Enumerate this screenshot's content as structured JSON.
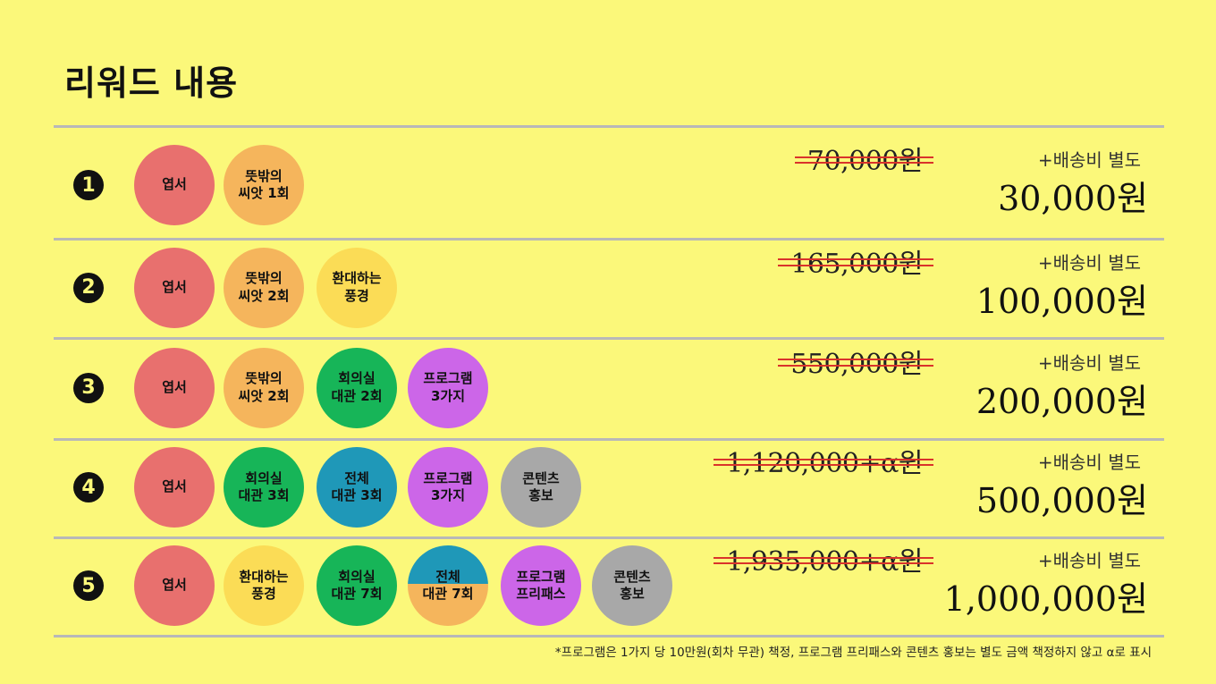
{
  "title": "리워드 내용",
  "colors": {
    "background": "#fbf87a",
    "postcard": "#e8706e",
    "seed": "#f5b55c",
    "landscape": "#fbdc56",
    "meeting": "#17b558",
    "whole": "#1f98b8",
    "program": "#cc66e8",
    "contents": "#a8a8a8",
    "strike": "#d9332b"
  },
  "shipping_label": "+배송비 별도",
  "tiers": [
    {
      "number": "1",
      "items": [
        {
          "label": "엽서",
          "color": "#e8706e"
        },
        {
          "label": "뜻밖의\n씨앗 1회",
          "color": "#f5b55c"
        }
      ],
      "original_price": "70,000원",
      "price": "30,000원"
    },
    {
      "number": "2",
      "items": [
        {
          "label": "엽서",
          "color": "#e8706e"
        },
        {
          "label": "뜻밖의\n씨앗 2회",
          "color": "#f5b55c"
        },
        {
          "label": "환대하는\n풍경",
          "color": "#fbdc56"
        }
      ],
      "original_price": "165,000원",
      "price": "100,000원"
    },
    {
      "number": "3",
      "items": [
        {
          "label": "엽서",
          "color": "#e8706e"
        },
        {
          "label": "뜻밖의\n씨앗 2회",
          "color": "#f5b55c"
        },
        {
          "label": "회의실\n대관 2회",
          "color": "#17b558"
        },
        {
          "label": "프로그램\n3가지",
          "color": "#cc66e8"
        }
      ],
      "original_price": "550,000원",
      "price": "200,000원"
    },
    {
      "number": "4",
      "items": [
        {
          "label": "엽서",
          "color": "#e8706e"
        },
        {
          "label": "회의실\n대관 3회",
          "color": "#17b558"
        },
        {
          "label": "전체\n대관 3회",
          "color": "#1f98b8"
        },
        {
          "label": "프로그램\n3가지",
          "color": "#cc66e8"
        },
        {
          "label": "콘텐츠\n홍보",
          "color": "#a8a8a8"
        }
      ],
      "original_price": "1,120,000+α원",
      "price": "500,000원"
    },
    {
      "number": "5",
      "items": [
        {
          "label": "엽서",
          "color": "#e8706e"
        },
        {
          "label": "환대하는\n풍경",
          "color": "#fbdc56"
        },
        {
          "label": "회의실\n대관 7회",
          "color": "#17b558"
        },
        {
          "label": "전체\n대관 7회",
          "color": "split"
        },
        {
          "label": "프로그램\n프리패스",
          "color": "#cc66e8"
        },
        {
          "label": "콘텐츠\n홍보",
          "color": "#a8a8a8"
        }
      ],
      "original_price": "1,935,000+α원",
      "price": "1,000,000원"
    }
  ],
  "footnote": "*프로그램은 1가지 당 10만원(회차 무관) 책정, 프로그램 프리패스와 콘텐츠 홍보는 별도 금액 책정하지 않고 α로 표시"
}
